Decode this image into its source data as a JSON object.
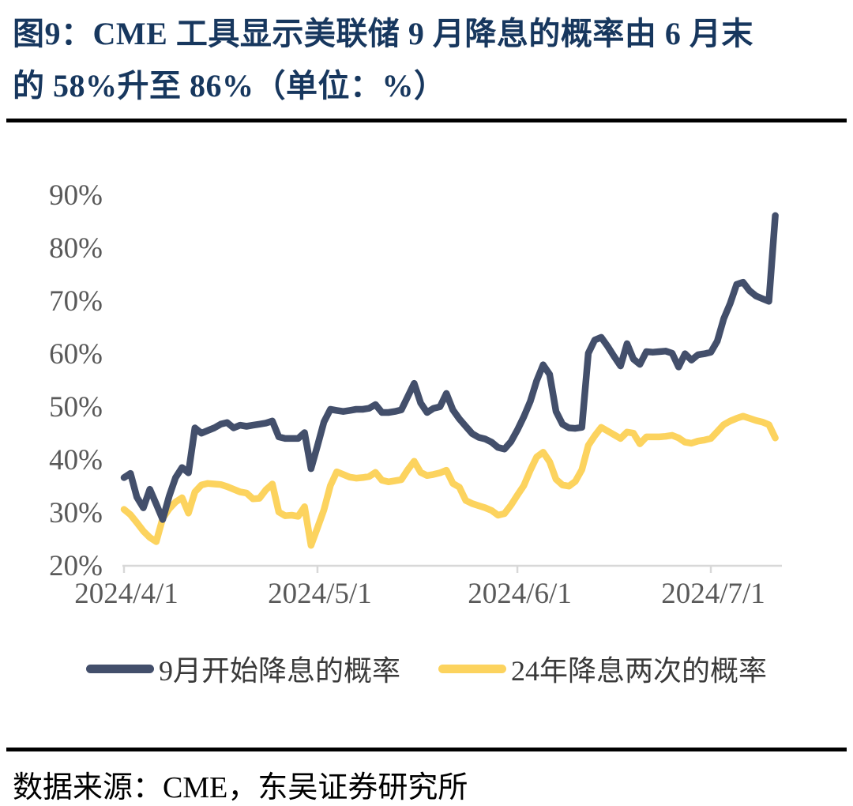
{
  "figure": {
    "title_line1": "图9：CME 工具显示美联储 9 月降息的概率由 6 月末",
    "title_line2": "的 58%升至 86%（单位：%）",
    "source": "数据来源：CME，东吴证券研究所"
  },
  "colors": {
    "title_navy": "#17375E",
    "axis_gray": "#595959",
    "axis_line_gray": "#D8D8D8",
    "divider_black": "#000000",
    "series_navy": "#434F6B",
    "series_yellow": "#FCD35E"
  },
  "chart_data": {
    "type": "line",
    "title": "图9：CME 工具显示美联储 9 月降息的概率由 6 月末的 58%升至 86%（单位：%）",
    "unit": "%",
    "ylim": [
      20,
      90
    ],
    "y_tick_labels": [
      "90%",
      "80%",
      "70%",
      "60%",
      "50%",
      "40%",
      "30%",
      "20%"
    ],
    "x_ticks": [
      {
        "label": "2024/4/1",
        "day": 0
      },
      {
        "label": "2024/5/1",
        "day": 30
      },
      {
        "label": "2024/6/1",
        "day": 61
      },
      {
        "label": "2024/7/1",
        "day": 91
      }
    ],
    "x_total_days": 101,
    "grid": false,
    "legend_position": "bottom",
    "series": [
      {
        "name": "9月开始降息的概率",
        "color": "#434F6B",
        "values": [
          36.5,
          37.3,
          32.8,
          30.8,
          34.3,
          31.5,
          28.6,
          33.0,
          36.5,
          38.4,
          37.4,
          45.9,
          44.9,
          45.4,
          45.9,
          46.6,
          46.9,
          45.9,
          46.4,
          46.2,
          46.4,
          46.6,
          46.8,
          47.2,
          44.2,
          43.9,
          43.9,
          43.9,
          45.0,
          38.2,
          42.5,
          47.0,
          49.4,
          49.2,
          49.0,
          49.2,
          49.4,
          49.4,
          49.6,
          50.3,
          48.8,
          48.8,
          49.0,
          49.3,
          51.8,
          54.3,
          50.6,
          48.8,
          49.6,
          49.9,
          52.4,
          49.3,
          47.6,
          46.2,
          44.8,
          44.1,
          43.8,
          43.2,
          42.2,
          41.9,
          43.3,
          45.5,
          48.0,
          50.9,
          54.8,
          57.8,
          56.0,
          49.0,
          46.6,
          45.9,
          45.8,
          46.0,
          60.0,
          62.5,
          63.0,
          61.3,
          59.4,
          57.6,
          61.8,
          58.9,
          57.9,
          60.3,
          60.2,
          60.3,
          60.4,
          60.0,
          57.4,
          59.9,
          58.7,
          59.7,
          59.9,
          60.2,
          62.3,
          66.5,
          69.4,
          73.0,
          73.4,
          71.8,
          70.8,
          70.3,
          69.8,
          86.0
        ]
      },
      {
        "name": "24年降息两次的概率",
        "color": "#FCD35E",
        "values": [
          30.5,
          29.5,
          28.0,
          26.4,
          25.2,
          24.4,
          28.8,
          30.6,
          31.9,
          32.7,
          29.8,
          33.8,
          35.1,
          35.4,
          35.3,
          35.2,
          34.8,
          34.3,
          33.8,
          33.6,
          32.5,
          32.6,
          34.2,
          35.3,
          30.0,
          29.3,
          29.4,
          29.2,
          31.0,
          23.7,
          27.0,
          30.4,
          35.0,
          37.6,
          37.1,
          36.6,
          36.4,
          36.5,
          36.7,
          37.5,
          36.0,
          35.7,
          35.9,
          36.1,
          38.0,
          39.6,
          37.5,
          36.9,
          37.1,
          37.4,
          37.9,
          35.4,
          34.7,
          32.2,
          31.6,
          31.2,
          30.8,
          30.3,
          29.4,
          29.7,
          31.3,
          33.2,
          35.0,
          37.9,
          40.4,
          41.3,
          39.5,
          36.2,
          35.1,
          34.9,
          35.8,
          38.0,
          42.6,
          44.4,
          46.0,
          45.3,
          44.6,
          43.9,
          45.1,
          44.9,
          42.9,
          44.2,
          44.2,
          44.2,
          44.3,
          44.5,
          44.0,
          43.2,
          43.0,
          43.4,
          43.6,
          43.9,
          45.2,
          46.5,
          47.2,
          47.7,
          48.1,
          47.7,
          47.3,
          47.0,
          46.5,
          44.0
        ]
      }
    ]
  }
}
